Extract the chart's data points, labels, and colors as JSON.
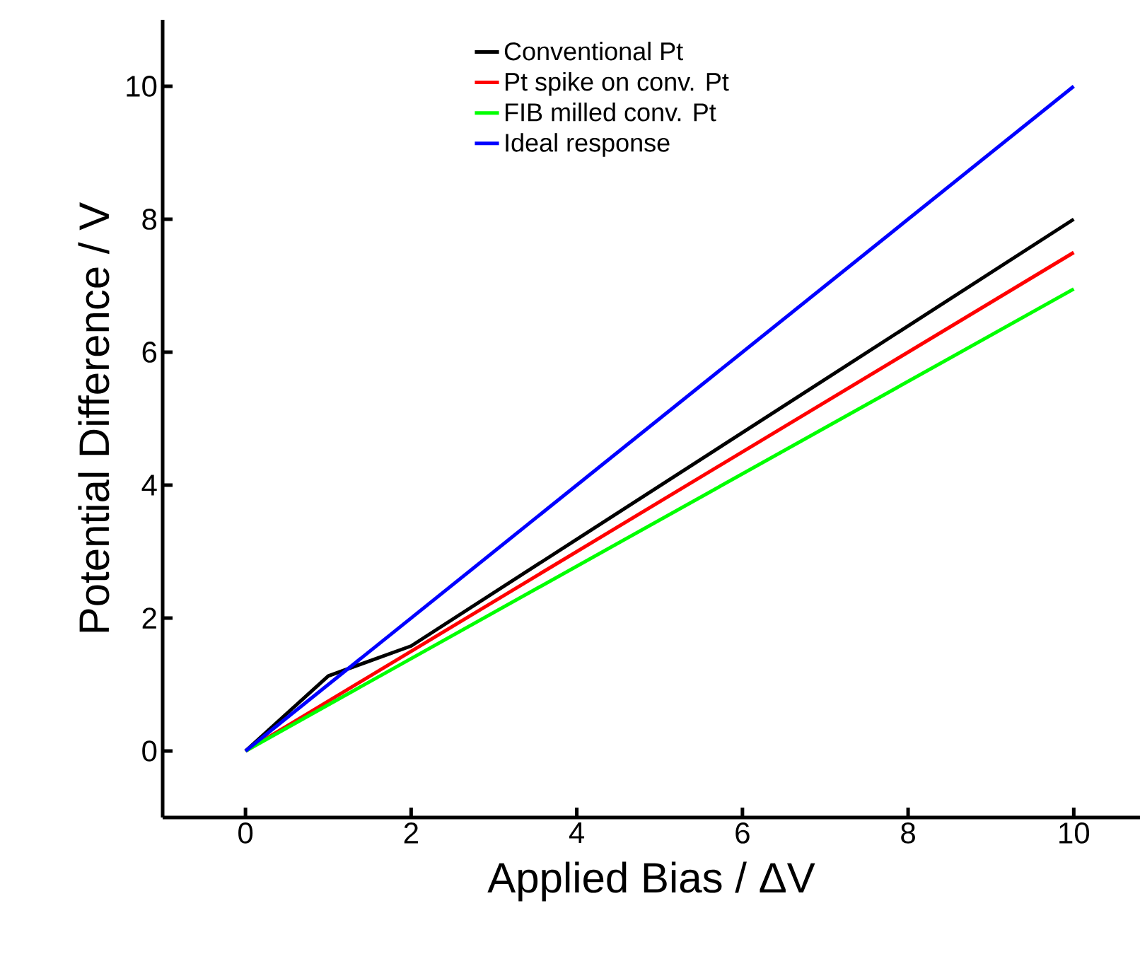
{
  "chart_data": {
    "type": "line",
    "xlabel": "Applied Bias / ΔV",
    "ylabel": "Potential Difference / V",
    "xlim": [
      -1,
      10.8
    ],
    "ylim": [
      -1,
      11
    ],
    "xticks": [
      0,
      2,
      4,
      6,
      8,
      10
    ],
    "yticks": [
      0,
      2,
      4,
      6,
      8,
      10
    ],
    "legend": "top",
    "grid": false,
    "marker": "none",
    "line_style": "solid",
    "series": [
      {
        "name": "Conventional Pt",
        "color": "#000000",
        "x": [
          0,
          1,
          2,
          10
        ],
        "values": [
          0,
          1.13,
          1.58,
          8.0
        ]
      },
      {
        "name": "Pt spike on conv. Pt",
        "color": "#ff0000",
        "x": [
          0,
          10
        ],
        "values": [
          0,
          7.5
        ]
      },
      {
        "name": "FIB milled conv. Pt",
        "color": "#00ff00",
        "x": [
          0,
          10
        ],
        "values": [
          0,
          6.95
        ]
      },
      {
        "name": "Ideal response",
        "color": "#0000ff",
        "x": [
          0,
          10
        ],
        "values": [
          0,
          10
        ]
      }
    ]
  }
}
